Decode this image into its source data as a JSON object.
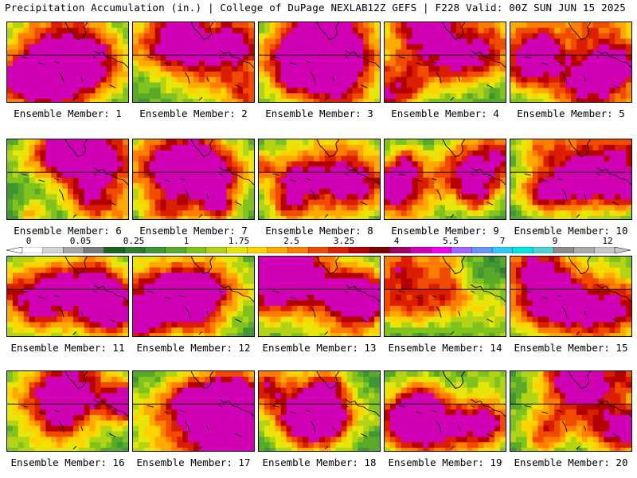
{
  "header": {
    "left": "Precipitation Accumulation (in.) | College of DuPage NEXLAB",
    "right": "12Z GEFS | F228 Valid: 00Z SUN JUN 15 2025"
  },
  "colorbar": {
    "labels": [
      "0",
      "0.05",
      "0.25",
      "1",
      "1.75",
      "2.5",
      "3.25",
      "4",
      "5.5",
      "7",
      "9",
      "12"
    ],
    "colors": [
      "#ffffff",
      "#d4d4d4",
      "#a8a8a8",
      "#7a7a7a",
      "#1e641e",
      "#2e7d2e",
      "#3f9632",
      "#58aa28",
      "#80c31e",
      "#b2d414",
      "#e6e60a",
      "#ffd200",
      "#ffaa00",
      "#ff7d00",
      "#f04b00",
      "#dc1e00",
      "#b40000",
      "#820000",
      "#a00064",
      "#d200b4",
      "#f000f0",
      "#a064ff",
      "#6496ff",
      "#32c8ff",
      "#00e6e6",
      "#50d2d2",
      "#8c8c8c",
      "#aaaaaa",
      "#c8c8c8"
    ]
  },
  "panels": [
    {
      "label": "Ensemble Member: 1"
    },
    {
      "label": "Ensemble Member: 2"
    },
    {
      "label": "Ensemble Member: 3"
    },
    {
      "label": "Ensemble Member: 4"
    },
    {
      "label": "Ensemble Member: 5"
    },
    {
      "label": "Ensemble Member: 6"
    },
    {
      "label": "Ensemble Member: 7"
    },
    {
      "label": "Ensemble Member: 8"
    },
    {
      "label": "Ensemble Member: 9"
    },
    {
      "label": "Ensemble Member: 10"
    },
    {
      "label": "Ensemble Member: 11"
    },
    {
      "label": "Ensemble Member: 12"
    },
    {
      "label": "Ensemble Member: 13"
    },
    {
      "label": "Ensemble Member: 14"
    },
    {
      "label": "Ensemble Member: 15"
    },
    {
      "label": "Ensemble Member: 16"
    },
    {
      "label": "Ensemble Member: 17"
    },
    {
      "label": "Ensemble Member: 18"
    },
    {
      "label": "Ensemble Member: 19"
    },
    {
      "label": "Ensemble Member: 20"
    }
  ]
}
